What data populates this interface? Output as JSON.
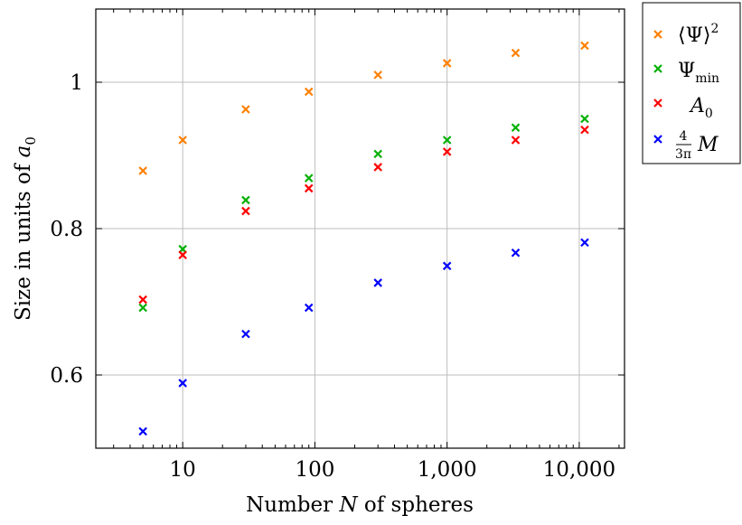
{
  "chart_data": {
    "type": "scatter",
    "xscale": "log",
    "xlim": [
      2.2,
      22000
    ],
    "ylim": [
      0.5,
      1.1
    ],
    "grid": true,
    "legend_position": "outside-top-right",
    "xlabel": "Number N of spheres",
    "ylabel": "Size in units of a₀",
    "xticks": [
      10,
      100,
      1000,
      10000
    ],
    "xtick_labels": [
      "10",
      "100",
      "1,000",
      "10,000"
    ],
    "yticks": [
      0.6,
      0.8,
      1.0
    ],
    "ytick_labels": [
      "0.6",
      "0.8",
      "1"
    ],
    "x": [
      5,
      10,
      30,
      90,
      300,
      1000,
      3300,
      11000
    ],
    "series": [
      {
        "name": "⟨Ψ⟩²",
        "color": "#ff8000",
        "values": [
          0.879,
          0.921,
          0.963,
          0.987,
          1.01,
          1.026,
          1.04,
          1.05
        ]
      },
      {
        "name": "Ψmin",
        "color": "#00b000",
        "values": [
          0.692,
          0.772,
          0.839,
          0.869,
          0.902,
          0.921,
          0.938,
          0.95
        ]
      },
      {
        "name": "A₀",
        "color": "#ff0000",
        "values": [
          0.703,
          0.764,
          0.824,
          0.855,
          0.884,
          0.905,
          0.921,
          0.935
        ]
      },
      {
        "name": "4/(3π) M",
        "color": "#0000ff",
        "values": [
          0.523,
          0.589,
          0.656,
          0.692,
          0.726,
          0.749,
          0.767,
          0.781
        ]
      }
    ]
  }
}
